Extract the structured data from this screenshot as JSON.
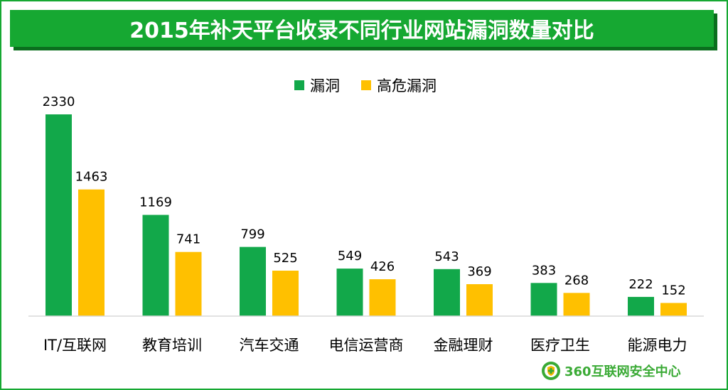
{
  "title": "2015年补天平台收录不同行业网站漏洞数量对比",
  "brand": "360互联网安全中心",
  "colors": {
    "series_0": "#12a84a",
    "series_1": "#ffc000",
    "accent": "#16a832"
  },
  "chart_data": {
    "type": "bar",
    "title": "2015年补天平台收录不同行业网站漏洞数量对比",
    "categories": [
      "IT/互联网",
      "教育培训",
      "汽车交通",
      "电信运营商",
      "金融理财",
      "医疗卫生",
      "能源电力"
    ],
    "series": [
      {
        "name": "漏洞",
        "values": [
          2330,
          1169,
          799,
          549,
          543,
          383,
          222
        ]
      },
      {
        "name": "高危漏洞",
        "values": [
          1463,
          741,
          525,
          426,
          369,
          268,
          152
        ]
      }
    ],
    "xlabel": "",
    "ylabel": "",
    "ylim": [
      0,
      2330
    ],
    "grid": false,
    "legend": "top-center"
  }
}
